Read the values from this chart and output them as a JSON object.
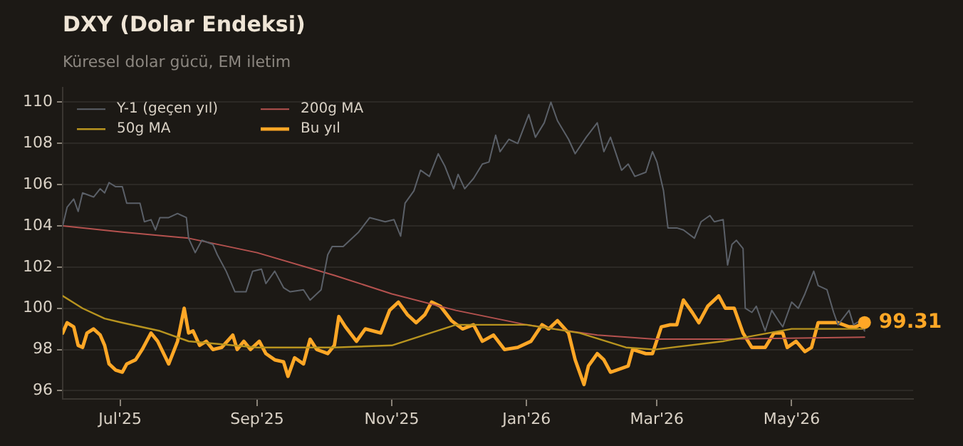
{
  "chart_data": {
    "type": "line",
    "title": "DXY (Dolar Endeksi)",
    "subtitle": "Küresel dolar gücü, EM iletim",
    "xlim": [
      "2025-06-05",
      "2026-06-25"
    ],
    "ylim": [
      95.6,
      110.7
    ],
    "xticks": [
      {
        "value": "2025-07-01",
        "label": "Jul'25"
      },
      {
        "value": "2025-09-01",
        "label": "Sep'25"
      },
      {
        "value": "2025-11-01",
        "label": "Nov'25"
      },
      {
        "value": "2026-01-01",
        "label": "Jan'26"
      },
      {
        "value": "2026-03-01",
        "label": "Mar'26"
      },
      {
        "value": "2026-05-01",
        "label": "May'26"
      }
    ],
    "yticks": [
      96,
      98,
      100,
      102,
      104,
      106,
      108,
      110
    ],
    "grid": true,
    "legend": "top left",
    "marker": "none",
    "line_style": "solid",
    "annotations": [
      {
        "text": "99.31",
        "x": "2026-06-03",
        "y": 99.31
      }
    ],
    "series": [
      {
        "name": "Y-1 (geçen yıl)",
        "color": "#5b6068",
        "x": [
          "2025-06-05",
          "2025-06-07",
          "2025-06-10",
          "2025-06-12",
          "2025-06-14",
          "2025-06-19",
          "2025-06-22",
          "2025-06-24",
          "2025-06-26",
          "2025-06-29",
          "2025-07-02",
          "2025-07-04",
          "2025-07-08",
          "2025-07-10",
          "2025-07-12",
          "2025-07-15",
          "2025-07-17",
          "2025-07-19",
          "2025-07-23",
          "2025-07-27",
          "2025-07-31",
          "2025-08-01",
          "2025-08-04",
          "2025-08-07",
          "2025-08-12",
          "2025-08-14",
          "2025-08-18",
          "2025-08-22",
          "2025-08-27",
          "2025-08-30",
          "2025-09-03",
          "2025-09-05",
          "2025-09-09",
          "2025-09-13",
          "2025-09-16",
          "2025-09-22",
          "2025-09-25",
          "2025-09-28",
          "2025-09-30",
          "2025-10-03",
          "2025-10-05",
          "2025-10-10",
          "2025-10-17",
          "2025-10-22",
          "2025-10-29",
          "2025-11-02",
          "2025-11-05",
          "2025-11-07",
          "2025-11-11",
          "2025-11-14",
          "2025-11-18",
          "2025-11-22",
          "2025-11-25",
          "2025-11-29",
          "2025-12-01",
          "2025-12-04",
          "2025-12-08",
          "2025-12-12",
          "2025-12-15",
          "2025-12-18",
          "2025-12-20",
          "2025-12-24",
          "2025-12-28",
          "2026-01-02",
          "2026-01-05",
          "2026-01-09",
          "2026-01-12",
          "2026-01-15",
          "2026-01-20",
          "2026-01-23",
          "2026-01-28",
          "2026-02-02",
          "2026-02-05",
          "2026-02-08",
          "2026-02-13",
          "2026-02-16",
          "2026-02-19",
          "2026-02-24",
          "2026-02-27",
          "2026-03-01",
          "2026-03-04",
          "2026-03-06",
          "2026-03-10",
          "2026-03-13",
          "2026-03-18",
          "2026-03-21",
          "2026-03-25",
          "2026-03-27",
          "2026-03-31",
          "2026-04-02",
          "2026-04-04",
          "2026-04-06",
          "2026-04-09",
          "2026-04-10",
          "2026-04-13",
          "2026-04-15",
          "2026-04-19",
          "2026-04-22",
          "2026-04-25",
          "2026-04-27",
          "2026-05-01",
          "2026-05-04",
          "2026-05-07",
          "2026-05-11",
          "2026-05-13",
          "2026-05-17",
          "2026-05-20",
          "2026-05-22",
          "2026-05-27",
          "2026-05-29",
          "2026-06-01",
          "2026-06-03"
        ],
        "values": [
          104.0,
          104.9,
          105.3,
          104.7,
          105.6,
          105.4,
          105.8,
          105.6,
          106.1,
          105.9,
          105.9,
          105.1,
          105.1,
          105.1,
          104.2,
          104.3,
          103.8,
          104.4,
          104.4,
          104.6,
          104.4,
          103.4,
          102.7,
          103.3,
          103.1,
          102.6,
          101.8,
          100.8,
          100.8,
          101.8,
          101.9,
          101.2,
          101.8,
          101.0,
          100.8,
          100.9,
          100.4,
          100.7,
          100.9,
          102.6,
          103.0,
          103.0,
          103.7,
          104.4,
          104.2,
          104.3,
          103.5,
          105.1,
          105.7,
          106.7,
          106.4,
          107.5,
          106.9,
          105.8,
          106.5,
          105.8,
          106.3,
          107.0,
          107.1,
          108.4,
          107.6,
          108.2,
          108.0,
          109.4,
          108.3,
          109.0,
          110.0,
          109.1,
          108.2,
          107.5,
          108.3,
          109.0,
          107.6,
          108.3,
          106.7,
          107.0,
          106.4,
          106.6,
          107.6,
          107.1,
          105.7,
          103.9,
          103.9,
          103.8,
          103.4,
          104.2,
          104.5,
          104.2,
          104.3,
          102.1,
          103.1,
          103.3,
          102.9,
          100.0,
          99.8,
          100.1,
          98.9,
          99.9,
          99.4,
          99.1,
          100.3,
          100.0,
          100.7,
          101.8,
          101.1,
          100.9,
          99.8,
          99.2,
          99.9,
          99.2,
          99.4,
          98.9
        ]
      },
      {
        "name": "50g MA",
        "color": "#b8941f",
        "x": [
          "2025-06-05",
          "2025-06-14",
          "2025-06-24",
          "2025-07-02",
          "2025-07-19",
          "2025-08-01",
          "2025-09-01",
          "2025-10-06",
          "2025-11-01",
          "2025-11-30",
          "2026-01-01",
          "2026-01-25",
          "2026-02-15",
          "2026-02-28",
          "2026-03-31",
          "2026-05-01",
          "2026-06-03"
        ],
        "values": [
          100.6,
          100.0,
          99.5,
          99.3,
          98.9,
          98.4,
          98.1,
          98.1,
          98.2,
          99.2,
          99.2,
          98.8,
          98.1,
          98.0,
          98.4,
          99.0,
          99.0
        ]
      },
      {
        "name": "200g MA",
        "color": "#b5524f",
        "x": [
          "2025-06-05",
          "2025-07-02",
          "2025-08-01",
          "2025-09-01",
          "2025-10-06",
          "2025-11-01",
          "2025-11-30",
          "2026-01-01",
          "2026-02-02",
          "2026-02-28",
          "2026-03-31",
          "2026-06-03"
        ],
        "values": [
          104.0,
          103.7,
          103.4,
          102.7,
          101.6,
          100.7,
          99.9,
          99.2,
          98.7,
          98.5,
          98.5,
          98.6
        ]
      },
      {
        "name": "Bu yıl",
        "color": "#ffa726",
        "x": [
          "2025-06-05",
          "2025-06-07",
          "2025-06-10",
          "2025-06-12",
          "2025-06-14",
          "2025-06-16",
          "2025-06-19",
          "2025-06-22",
          "2025-06-24",
          "2025-06-26",
          "2025-06-29",
          "2025-07-02",
          "2025-07-04",
          "2025-07-08",
          "2025-07-11",
          "2025-07-15",
          "2025-07-18",
          "2025-07-23",
          "2025-07-27",
          "2025-07-30",
          "2025-08-01",
          "2025-08-03",
          "2025-08-06",
          "2025-08-09",
          "2025-08-12",
          "2025-08-16",
          "2025-08-21",
          "2025-08-23",
          "2025-08-26",
          "2025-08-29",
          "2025-09-02",
          "2025-09-05",
          "2025-09-09",
          "2025-09-13",
          "2025-09-15",
          "2025-09-18",
          "2025-09-22",
          "2025-09-25",
          "2025-09-28",
          "2025-10-03",
          "2025-10-06",
          "2025-10-08",
          "2025-10-11",
          "2025-10-16",
          "2025-10-20",
          "2025-10-27",
          "2025-10-31",
          "2025-11-04",
          "2025-11-08",
          "2025-11-12",
          "2025-11-16",
          "2025-11-19",
          "2025-11-23",
          "2025-11-28",
          "2025-12-03",
          "2025-12-08",
          "2025-12-12",
          "2025-12-17",
          "2025-12-22",
          "2025-12-28",
          "2026-01-03",
          "2026-01-08",
          "2026-01-11",
          "2026-01-15",
          "2026-01-20",
          "2026-01-23",
          "2026-01-27",
          "2026-01-29",
          "2026-02-02",
          "2026-02-05",
          "2026-02-08",
          "2026-02-16",
          "2026-02-18",
          "2026-02-24",
          "2026-02-27",
          "2026-03-03",
          "2026-03-07",
          "2026-03-10",
          "2026-03-13",
          "2026-03-17",
          "2026-03-20",
          "2026-03-24",
          "2026-03-29",
          "2026-04-01",
          "2026-04-05",
          "2026-04-09",
          "2026-04-13",
          "2026-04-19",
          "2026-04-23",
          "2026-04-27",
          "2026-04-29",
          "2026-05-03",
          "2026-05-07",
          "2026-05-10",
          "2026-05-13",
          "2026-05-17",
          "2026-05-22",
          "2026-05-27",
          "2026-05-30",
          "2026-06-03"
        ],
        "values": [
          98.8,
          99.3,
          99.1,
          98.2,
          98.1,
          98.8,
          99.0,
          98.7,
          98.2,
          97.3,
          97.0,
          96.9,
          97.3,
          97.5,
          98.0,
          98.8,
          98.4,
          97.3,
          98.4,
          100.0,
          98.8,
          98.9,
          98.2,
          98.4,
          98.0,
          98.1,
          98.7,
          98.0,
          98.4,
          98.0,
          98.4,
          97.8,
          97.5,
          97.4,
          96.7,
          97.6,
          97.3,
          98.5,
          98.0,
          97.8,
          98.2,
          99.6,
          99.1,
          98.4,
          99.0,
          98.8,
          99.9,
          100.3,
          99.7,
          99.3,
          99.7,
          100.3,
          100.1,
          99.4,
          99.0,
          99.2,
          98.4,
          98.7,
          98.0,
          98.1,
          98.4,
          99.2,
          99.0,
          99.4,
          98.8,
          97.5,
          96.3,
          97.2,
          97.8,
          97.5,
          96.9,
          97.2,
          98.0,
          97.8,
          97.8,
          99.1,
          99.2,
          99.2,
          100.4,
          99.8,
          99.3,
          100.1,
          100.6,
          100.0,
          100.0,
          98.8,
          98.1,
          98.1,
          98.8,
          98.8,
          98.1,
          98.4,
          97.9,
          98.1,
          99.3,
          99.3,
          99.3,
          99.1,
          99.1,
          99.31
        ]
      }
    ]
  }
}
